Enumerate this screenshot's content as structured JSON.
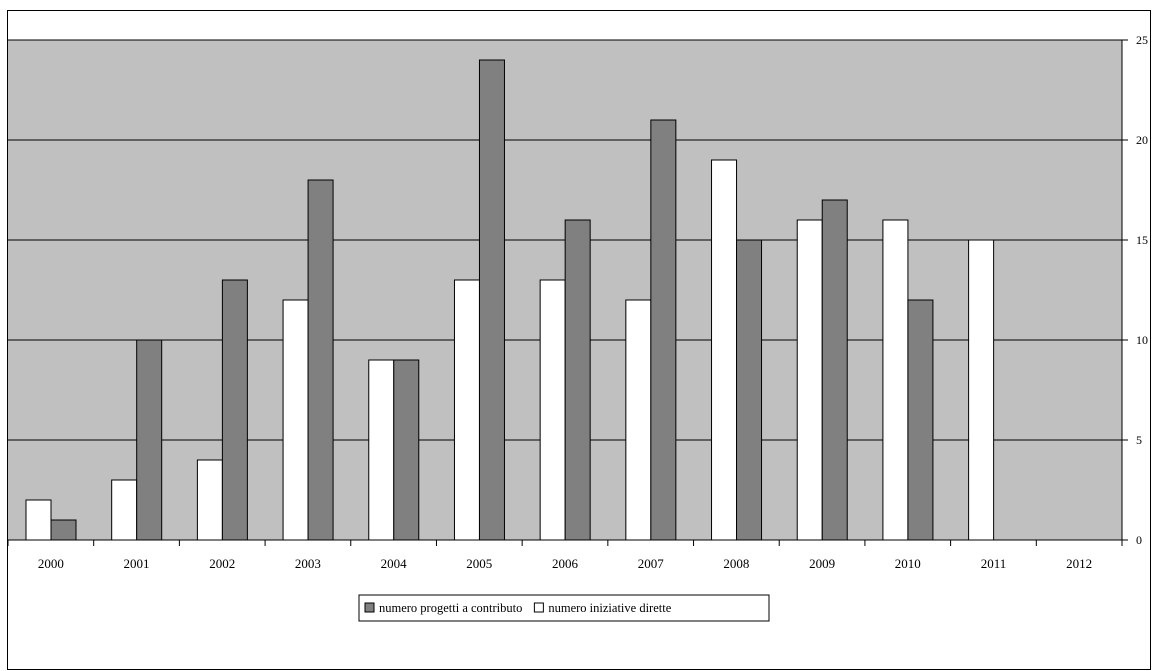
{
  "chart_data": {
    "type": "bar",
    "categories": [
      "2000",
      "2001",
      "2002",
      "2003",
      "2004",
      "2005",
      "2006",
      "2007",
      "2008",
      "2009",
      "2010",
      "2011",
      "2012"
    ],
    "series": [
      {
        "name": "numero iniziative dirette",
        "color": "#ffffff",
        "values": [
          2,
          3,
          4,
          12,
          9,
          13,
          13,
          12,
          19,
          16,
          16,
          15,
          null
        ]
      },
      {
        "name": "numero progetti a contributo",
        "color": "#808080",
        "values": [
          1,
          10,
          13,
          18,
          9,
          24,
          16,
          21,
          15,
          17,
          12,
          null,
          null
        ]
      }
    ],
    "ylim": [
      0,
      25
    ],
    "yticks": [
      0,
      5,
      10,
      15,
      20,
      25
    ],
    "y_axis_side": "right",
    "grid": true,
    "plot_background": "#c0c0c0",
    "legend": {
      "position": "bottom-center",
      "entries": [
        "numero progetti a contributo",
        "numero iniziative dirette"
      ]
    },
    "title": "",
    "xlabel": "",
    "ylabel": ""
  }
}
